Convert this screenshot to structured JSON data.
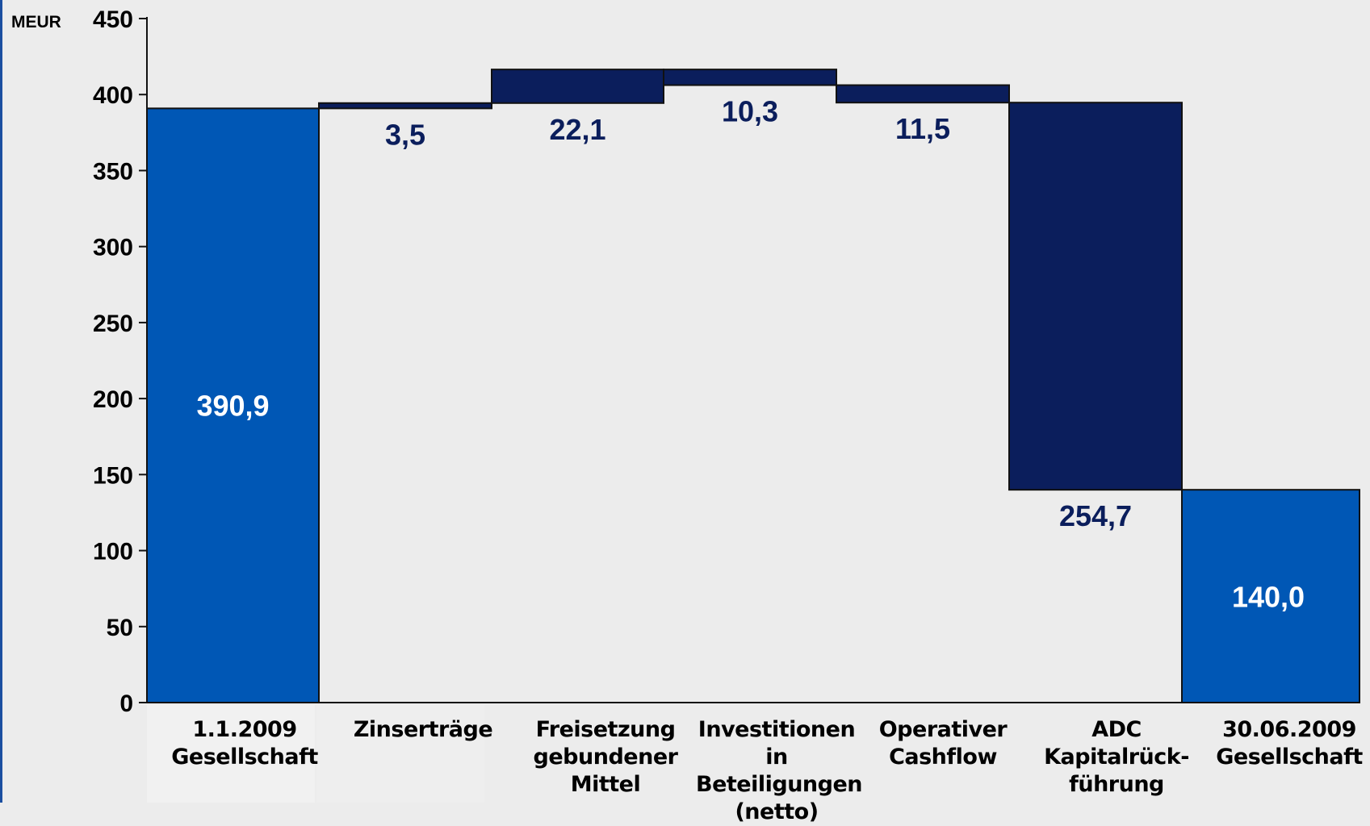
{
  "chart_data": {
    "type": "bar",
    "subtype": "waterfall",
    "unit_label": "MEUR",
    "ylim": [
      0,
      450
    ],
    "yticks": [
      "0",
      "50",
      "100",
      "150",
      "200",
      "250",
      "300",
      "350",
      "400",
      "450"
    ],
    "grid": false,
    "categories": [
      "1.1.2009\nGesellschaft",
      "Zinserträge",
      "Freisetzung\ngebundener\nMittel",
      "Investitionen in\nBeteiligungen\n(netto)",
      "Operativer\nCashflow",
      "ADC\nKapitalrück-\nführung",
      "30.06.2009\nGesellschaft"
    ],
    "steps": [
      {
        "kind": "total",
        "value": 390.9,
        "label": "390,9"
      },
      {
        "kind": "delta",
        "value": 3.5,
        "label": "3,5"
      },
      {
        "kind": "delta",
        "value": 22.1,
        "label": "22,1"
      },
      {
        "kind": "delta",
        "value": -10.3,
        "label": "10,3"
      },
      {
        "kind": "delta",
        "value": -11.5,
        "label": "11,5"
      },
      {
        "kind": "delta",
        "value": -254.7,
        "label": "254,7"
      },
      {
        "kind": "total",
        "value": 140.0,
        "label": "140,0"
      }
    ],
    "colors": {
      "total": "#0057b5",
      "delta": "#0b1e5c",
      "total_label": "#ffffff",
      "delta_label": "#0b1e5c"
    }
  }
}
